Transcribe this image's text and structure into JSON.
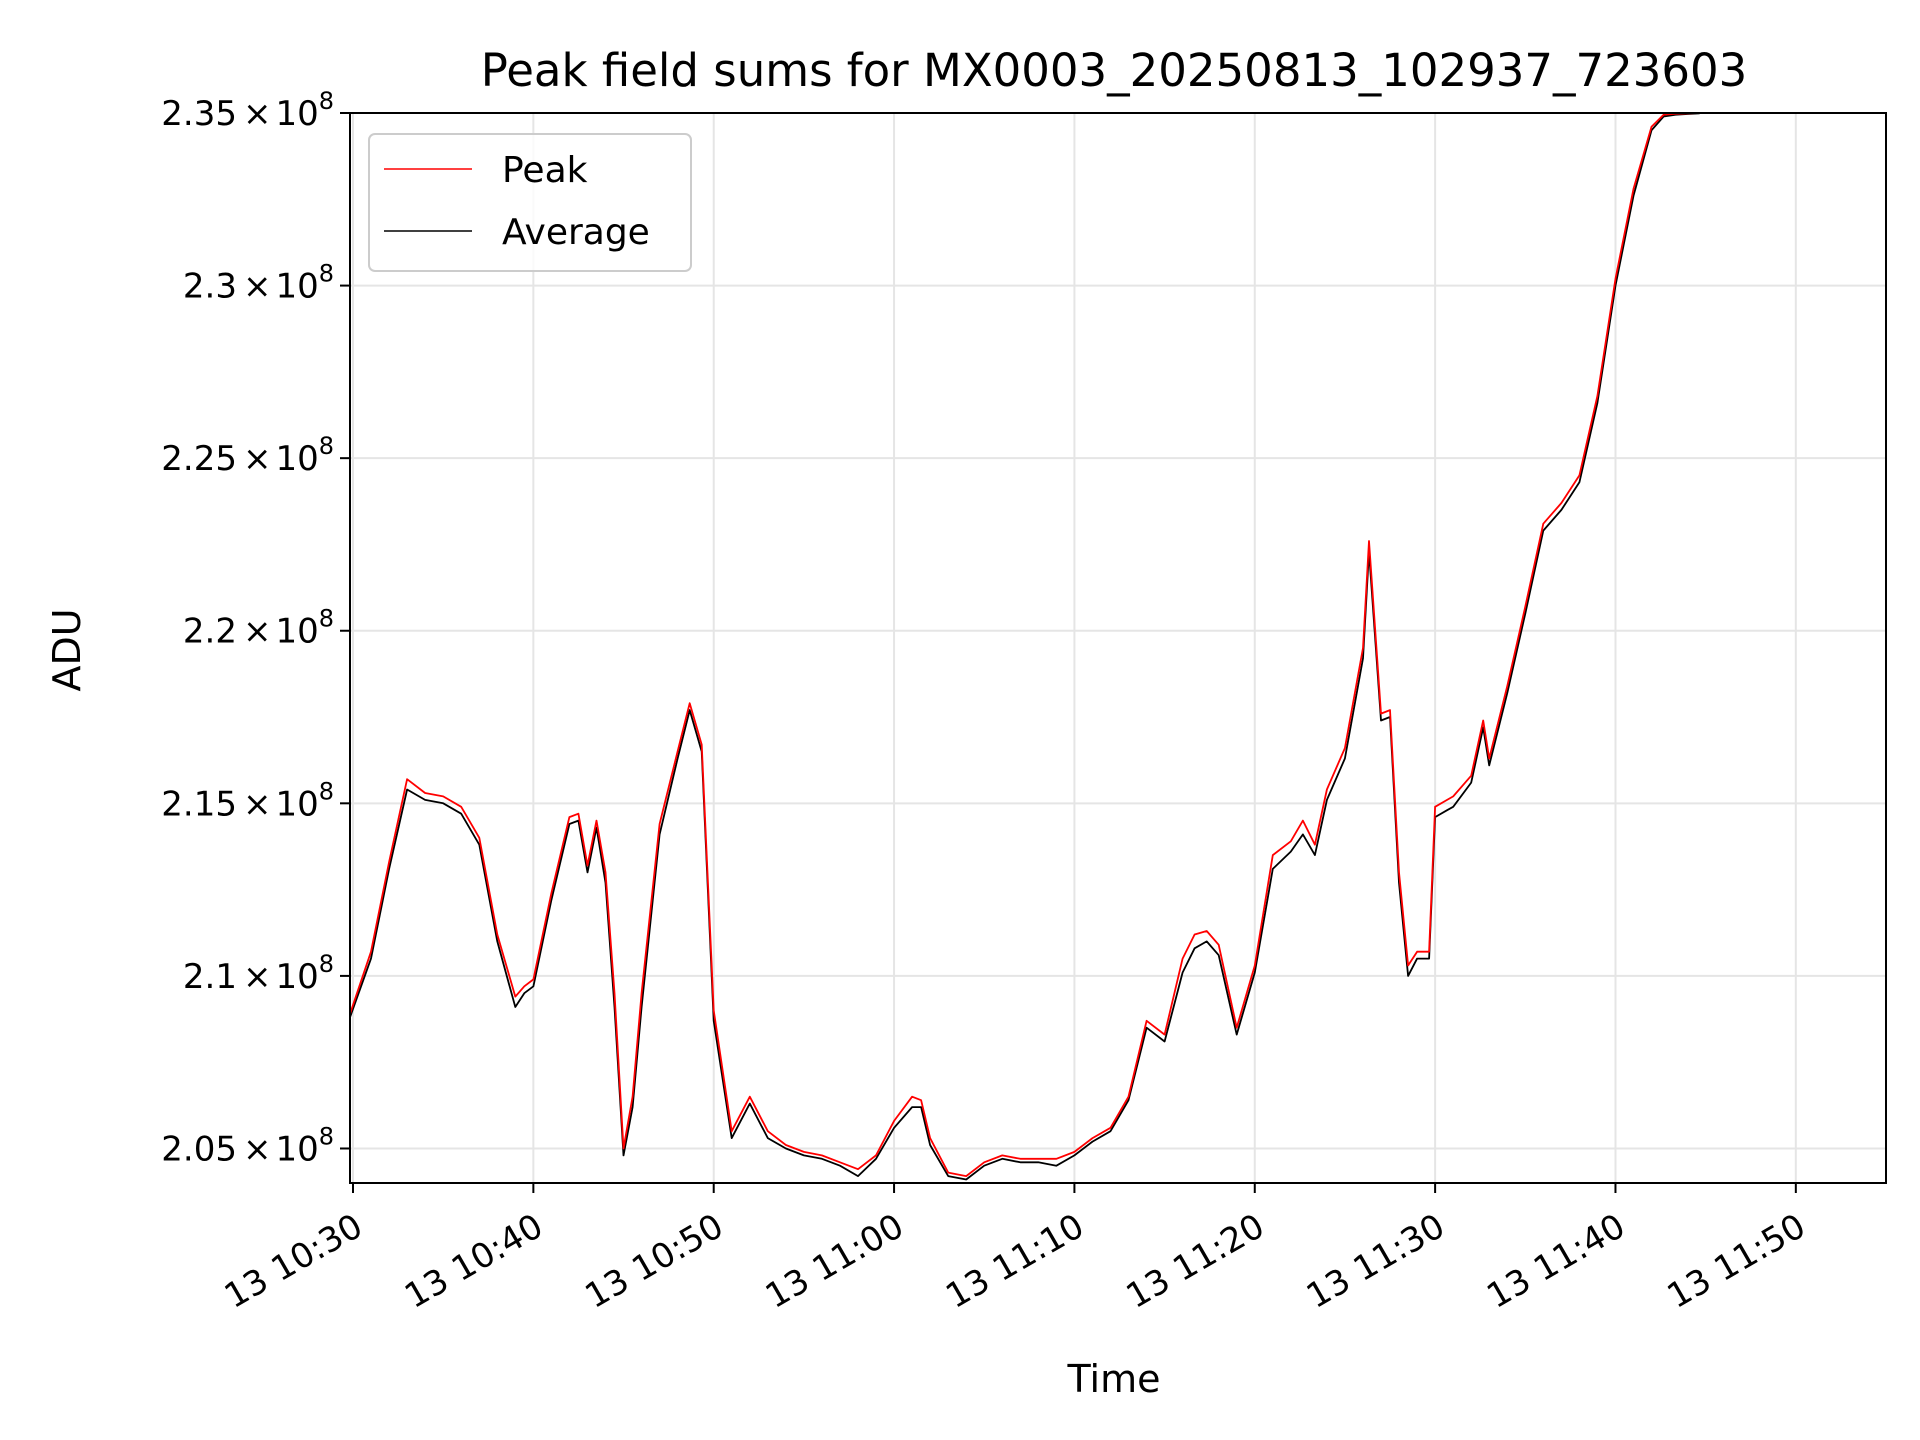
{
  "chart_data": {
    "type": "line",
    "title": "Peak field sums for MX0003_20250813_102937_723603",
    "xlabel": "Time",
    "ylabel": "ADU",
    "grid": true,
    "legend_placement": "top-left",
    "xlim": [
      "2025-08-13T10:29:50",
      "2025-08-13T11:55:00"
    ],
    "ylim": [
      204000000,
      235000000
    ],
    "x_ticks": [
      {
        "value": "2025-08-13T10:30",
        "label": "13 10:30"
      },
      {
        "value": "2025-08-13T10:40",
        "label": "13 10:40"
      },
      {
        "value": "2025-08-13T10:50",
        "label": "13 10:50"
      },
      {
        "value": "2025-08-13T11:00",
        "label": "13 11:00"
      },
      {
        "value": "2025-08-13T11:10",
        "label": "13 11:10"
      },
      {
        "value": "2025-08-13T11:20",
        "label": "13 11:20"
      },
      {
        "value": "2025-08-13T11:30",
        "label": "13 11:30"
      },
      {
        "value": "2025-08-13T11:40",
        "label": "13 11:40"
      },
      {
        "value": "2025-08-13T11:50",
        "label": "13 11:50"
      }
    ],
    "y_ticks": [
      {
        "value": 205000000,
        "mantissa": "2.05"
      },
      {
        "value": 210000000,
        "mantissa": "2.1"
      },
      {
        "value": 215000000,
        "mantissa": "2.15"
      },
      {
        "value": 220000000,
        "mantissa": "2.2"
      },
      {
        "value": 225000000,
        "mantissa": "2.25"
      },
      {
        "value": 230000000,
        "mantissa": "2.3"
      },
      {
        "value": 235000000,
        "mantissa": "2.35"
      }
    ],
    "y_tick_multiplier": "×",
    "y_tick_base": "10",
    "y_tick_exponent": "8",
    "x": [
      "2025-08-13T10:29:50",
      "2025-08-13T10:31:00",
      "2025-08-13T10:32:00",
      "2025-08-13T10:33:00",
      "2025-08-13T10:34:00",
      "2025-08-13T10:35:00",
      "2025-08-13T10:36:00",
      "2025-08-13T10:37:00",
      "2025-08-13T10:38:00",
      "2025-08-13T10:39:00",
      "2025-08-13T10:39:30",
      "2025-08-13T10:40:00",
      "2025-08-13T10:41:00",
      "2025-08-13T10:42:00",
      "2025-08-13T10:42:30",
      "2025-08-13T10:43:00",
      "2025-08-13T10:43:30",
      "2025-08-13T10:44:00",
      "2025-08-13T10:44:30",
      "2025-08-13T10:45:00",
      "2025-08-13T10:45:30",
      "2025-08-13T10:46:00",
      "2025-08-13T10:47:00",
      "2025-08-13T10:48:00",
      "2025-08-13T10:48:40",
      "2025-08-13T10:49:20",
      "2025-08-13T10:50:00",
      "2025-08-13T10:51:00",
      "2025-08-13T10:52:00",
      "2025-08-13T10:53:00",
      "2025-08-13T10:54:00",
      "2025-08-13T10:55:00",
      "2025-08-13T10:56:00",
      "2025-08-13T10:57:00",
      "2025-08-13T10:58:00",
      "2025-08-13T10:59:00",
      "2025-08-13T11:00:00",
      "2025-08-13T11:01:00",
      "2025-08-13T11:01:30",
      "2025-08-13T11:02:00",
      "2025-08-13T11:03:00",
      "2025-08-13T11:04:00",
      "2025-08-13T11:05:00",
      "2025-08-13T11:06:00",
      "2025-08-13T11:07:00",
      "2025-08-13T11:08:00",
      "2025-08-13T11:09:00",
      "2025-08-13T11:10:00",
      "2025-08-13T11:11:00",
      "2025-08-13T11:12:00",
      "2025-08-13T11:13:00",
      "2025-08-13T11:14:00",
      "2025-08-13T11:15:00",
      "2025-08-13T11:16:00",
      "2025-08-13T11:16:40",
      "2025-08-13T11:17:20",
      "2025-08-13T11:18:00",
      "2025-08-13T11:19:00",
      "2025-08-13T11:20:00",
      "2025-08-13T11:21:00",
      "2025-08-13T11:22:00",
      "2025-08-13T11:22:40",
      "2025-08-13T11:23:20",
      "2025-08-13T11:24:00",
      "2025-08-13T11:25:00",
      "2025-08-13T11:26:00",
      "2025-08-13T11:26:20",
      "2025-08-13T11:27:00",
      "2025-08-13T11:27:30",
      "2025-08-13T11:28:00",
      "2025-08-13T11:28:30",
      "2025-08-13T11:29:00",
      "2025-08-13T11:29:40",
      "2025-08-13T11:30:00",
      "2025-08-13T11:30:40",
      "2025-08-13T11:31:00",
      "2025-08-13T11:32:00",
      "2025-08-13T11:32:40",
      "2025-08-13T11:33:00",
      "2025-08-13T11:34:00",
      "2025-08-13T11:35:00",
      "2025-08-13T11:36:00",
      "2025-08-13T11:37:00",
      "2025-08-13T11:38:00",
      "2025-08-13T11:39:00",
      "2025-08-13T11:40:00",
      "2025-08-13T11:41:00",
      "2025-08-13T11:42:00",
      "2025-08-13T11:42:40",
      "2025-08-13T11:43:20",
      "2025-08-13T11:44:00",
      "2025-08-13T11:44:40"
    ],
    "series": [
      {
        "name": "Peak",
        "color": "#ff0000",
        "values": [
          208900000,
          210700000,
          213300000,
          215700000,
          215300000,
          215200000,
          214900000,
          214000000,
          211200000,
          209400000,
          209700000,
          209900000,
          212400000,
          214600000,
          214700000,
          213200000,
          214500000,
          213000000,
          209500000,
          205000000,
          206500000,
          209500000,
          214400000,
          216500000,
          217900000,
          216700000,
          209000000,
          205500000,
          206500000,
          205500000,
          205100000,
          204900000,
          204800000,
          204600000,
          204400000,
          204800000,
          205800000,
          206500000,
          206400000,
          205300000,
          204300000,
          204200000,
          204600000,
          204800000,
          204700000,
          204700000,
          204700000,
          204900000,
          205300000,
          205600000,
          206500000,
          208700000,
          208300000,
          210500000,
          211200000,
          211300000,
          210900000,
          208500000,
          210300000,
          213500000,
          213900000,
          214500000,
          213800000,
          215400000,
          216600000,
          219500000,
          222600000,
          217600000,
          217700000,
          213000000,
          210300000,
          210700000,
          210700000,
          214900000,
          215100000,
          215200000,
          215800000,
          217400000,
          216300000,
          218400000,
          220700000,
          223100000,
          223700000,
          224500000,
          226800000,
          230200000,
          232800000,
          234600000,
          234950000,
          234980000,
          234990000,
          235000000
        ]
      },
      {
        "name": "Average",
        "color": "#000000",
        "values": [
          208800000,
          210500000,
          213100000,
          215400000,
          215100000,
          215000000,
          214700000,
          213800000,
          211000000,
          209100000,
          209500000,
          209700000,
          212200000,
          214400000,
          214500000,
          213000000,
          214300000,
          212700000,
          209100000,
          204800000,
          206200000,
          209100000,
          214100000,
          216300000,
          217700000,
          216500000,
          208700000,
          205300000,
          206300000,
          205300000,
          205000000,
          204800000,
          204700000,
          204500000,
          204200000,
          204700000,
          205600000,
          206200000,
          206200000,
          205100000,
          204200000,
          204100000,
          204500000,
          204700000,
          204600000,
          204600000,
          204500000,
          204800000,
          205200000,
          205500000,
          206400000,
          208500000,
          208100000,
          210100000,
          210800000,
          211000000,
          210600000,
          208300000,
          210100000,
          213100000,
          213600000,
          214100000,
          213500000,
          215100000,
          216300000,
          219200000,
          222300000,
          217400000,
          217500000,
          212700000,
          210000000,
          210500000,
          210500000,
          214600000,
          214800000,
          214900000,
          215600000,
          217200000,
          216100000,
          218200000,
          220500000,
          222900000,
          223500000,
          224300000,
          226600000,
          230000000,
          232600000,
          234500000,
          234900000,
          234950000,
          234970000,
          234990000
        ]
      }
    ]
  }
}
